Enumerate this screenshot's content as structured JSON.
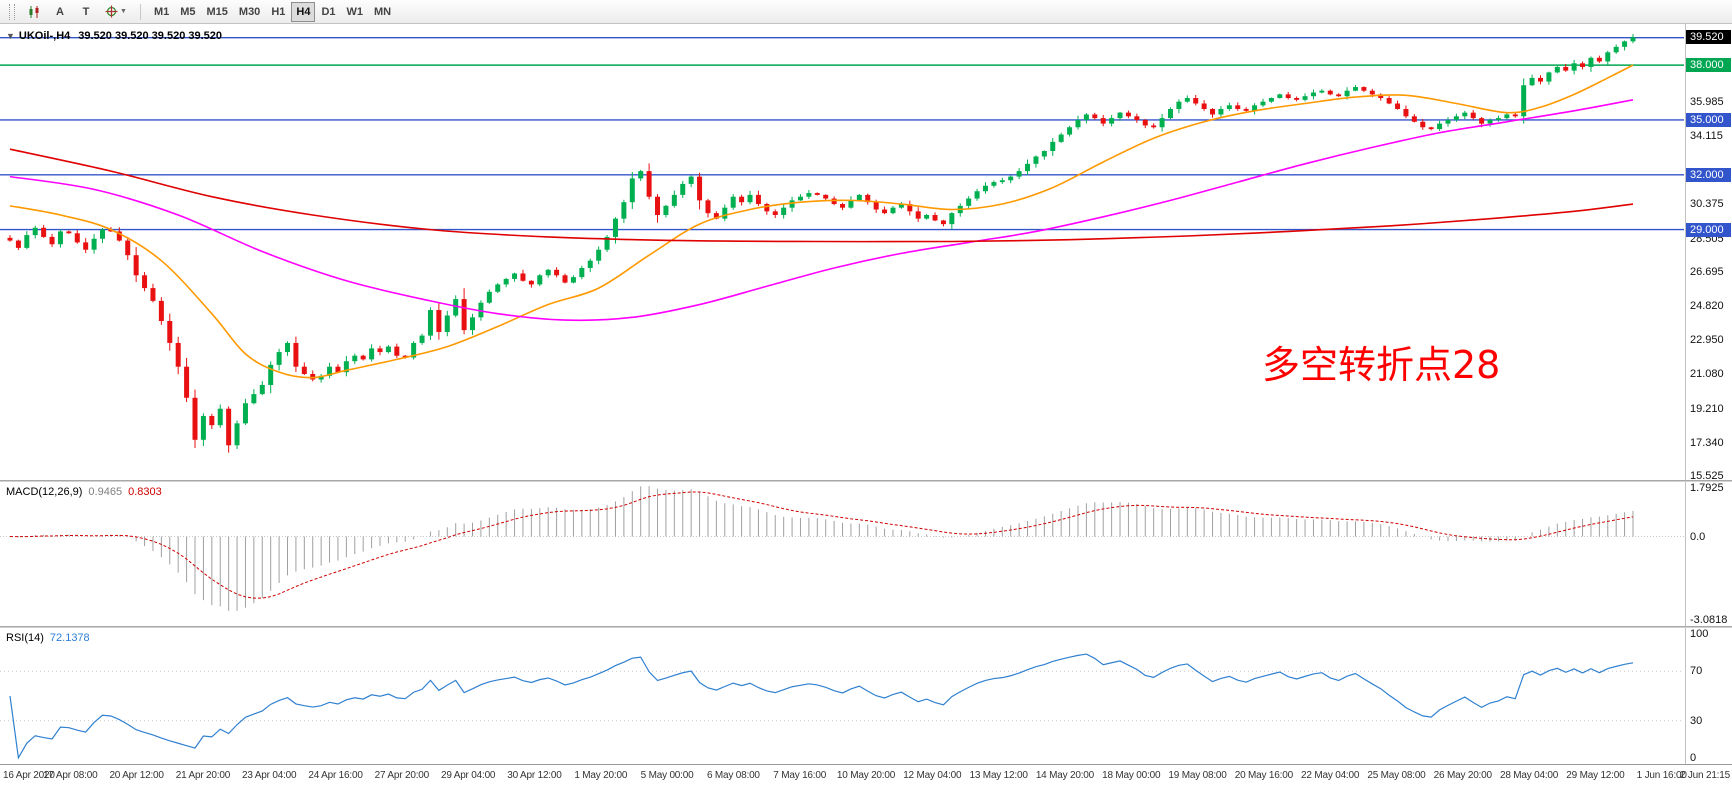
{
  "toolbar": {
    "text_buttons": [
      "A",
      "T"
    ],
    "timeframes": [
      "M1",
      "M5",
      "M15",
      "M30",
      "H1",
      "H4",
      "D1",
      "W1",
      "MN"
    ],
    "active_timeframe": "H4"
  },
  "colors": {
    "up": "#00b050",
    "down": "#e81010",
    "ma_fast": "#ff9900",
    "ma_mid": "#ff00ff",
    "ma_slow": "#e00000",
    "macd_hist": "#a0a0a0",
    "macd_signal": "#d00000",
    "rsi": "#3080d0",
    "hline_blue": "#3355cc",
    "hline_green": "#00a651",
    "bid_tag": "#000000"
  },
  "main_chart": {
    "collapse_icon": "▼",
    "symbol_period": "UKOil-,H4",
    "ohlc": "39.520 39.520 39.520 39.520",
    "annotation": "多空转折点28",
    "price_range": {
      "max": 40.25,
      "min": 15.3
    },
    "price_ticks": [
      "35.985",
      "34.115",
      "30.375",
      "28.505",
      "26.695",
      "24.820",
      "22.950",
      "21.080",
      "19.210",
      "17.340",
      "15.525"
    ],
    "price_tags": [
      {
        "value": 39.52,
        "label": "39.520",
        "bg": "#000000"
      },
      {
        "value": 38.0,
        "label": "38.000",
        "bg": "#00a651"
      },
      {
        "value": 35.0,
        "label": "35.000",
        "bg": "#3355cc"
      },
      {
        "value": 32.0,
        "label": "32.000",
        "bg": "#3355cc"
      },
      {
        "value": 29.0,
        "label": "29.000",
        "bg": "#3355cc"
      }
    ],
    "hlines": [
      {
        "value": 39.5,
        "color": "#3355cc"
      },
      {
        "value": 38.0,
        "color": "#00a651"
      },
      {
        "value": 35.0,
        "color": "#3355cc"
      },
      {
        "value": 32.0,
        "color": "#3355cc"
      },
      {
        "value": 29.0,
        "color": "#3355cc"
      }
    ]
  },
  "macd_panel": {
    "label": "MACD(12,26,9)",
    "value_main": "0.9465",
    "value_signal": "0.8303",
    "ticks": [
      "1.7925",
      "0.0",
      "-3.0818"
    ]
  },
  "rsi_panel": {
    "label": "RSI(14)",
    "value": "72.1378",
    "ticks": [
      "100",
      "70",
      "30",
      "0"
    ]
  },
  "chart_data": {
    "type": "candlestick",
    "symbol": "UKOil-",
    "timeframe": "H4",
    "closes": [
      28.4,
      28.0,
      28.7,
      29.1,
      28.6,
      28.2,
      28.9,
      28.8,
      28.3,
      27.9,
      28.5,
      29.0,
      28.9,
      28.4,
      27.6,
      26.5,
      25.8,
      25.1,
      24.0,
      22.8,
      21.5,
      19.8,
      17.5,
      18.8,
      18.3,
      19.2,
      17.2,
      18.4,
      19.5,
      20.0,
      20.5,
      21.6,
      22.3,
      22.8,
      21.5,
      21.1,
      20.8,
      21.0,
      21.5,
      21.2,
      21.8,
      22.1,
      21.9,
      22.5,
      22.3,
      22.6,
      22.1,
      22.0,
      22.8,
      23.2,
      24.6,
      23.4,
      24.3,
      25.2,
      23.5,
      24.2,
      25.0,
      25.6,
      26.0,
      26.3,
      26.6,
      26.2,
      26.0,
      26.5,
      26.8,
      26.5,
      26.1,
      26.4,
      26.9,
      27.3,
      27.9,
      28.6,
      29.6,
      30.5,
      31.8,
      32.2,
      30.8,
      29.8,
      30.3,
      30.9,
      31.5,
      31.9,
      30.6,
      29.9,
      29.6,
      30.2,
      30.8,
      30.5,
      30.9,
      30.4,
      30.0,
      29.8,
      30.2,
      30.6,
      30.8,
      31.0,
      30.9,
      30.7,
      30.4,
      30.2,
      30.6,
      30.9,
      30.5,
      30.1,
      29.9,
      30.2,
      30.4,
      30.0,
      29.6,
      29.8,
      29.5,
      29.3,
      29.9,
      30.3,
      30.7,
      31.1,
      31.4,
      31.6,
      31.7,
      31.9,
      32.2,
      32.6,
      33.0,
      33.3,
      33.8,
      34.2,
      34.6,
      35.0,
      35.3,
      35.1,
      34.8,
      35.1,
      35.4,
      35.2,
      35.0,
      34.7,
      34.6,
      35.1,
      35.6,
      36.0,
      36.2,
      35.9,
      35.6,
      35.3,
      35.6,
      35.8,
      35.6,
      35.5,
      35.8,
      36.0,
      36.2,
      36.4,
      36.2,
      36.1,
      36.3,
      36.5,
      36.6,
      36.4,
      36.3,
      36.6,
      36.8,
      36.6,
      36.4,
      36.2,
      35.9,
      35.6,
      35.2,
      34.9,
      34.6,
      34.5,
      34.8,
      35.0,
      35.2,
      35.4,
      35.1,
      34.8,
      35.0,
      35.1,
      35.3,
      35.2,
      36.9,
      37.3,
      37.1,
      37.6,
      37.9,
      37.7,
      38.1,
      37.9,
      38.4,
      38.2,
      38.7,
      39.0,
      39.3,
      39.52
    ],
    "moving_averages": [
      {
        "name": "fast",
        "color_key": "ma_fast",
        "points": [
          [
            0,
            30.3
          ],
          [
            6,
            29.8
          ],
          [
            12,
            29.0
          ],
          [
            18,
            27.3
          ],
          [
            24,
            24.4
          ],
          [
            28,
            22.2
          ],
          [
            32,
            21.2
          ],
          [
            36,
            20.9
          ],
          [
            40,
            21.3
          ],
          [
            46,
            21.9
          ],
          [
            52,
            22.6
          ],
          [
            58,
            23.7
          ],
          [
            64,
            24.9
          ],
          [
            70,
            25.8
          ],
          [
            76,
            27.6
          ],
          [
            82,
            29.3
          ],
          [
            88,
            30.1
          ],
          [
            94,
            30.5
          ],
          [
            100,
            30.6
          ],
          [
            106,
            30.4
          ],
          [
            112,
            30.1
          ],
          [
            118,
            30.4
          ],
          [
            124,
            31.3
          ],
          [
            130,
            32.7
          ],
          [
            136,
            34.0
          ],
          [
            142,
            34.9
          ],
          [
            148,
            35.5
          ],
          [
            154,
            35.9
          ],
          [
            160,
            36.25
          ],
          [
            166,
            36.35
          ],
          [
            172,
            35.9
          ],
          [
            178,
            35.4
          ],
          [
            182,
            35.7
          ],
          [
            186,
            36.4
          ],
          [
            190,
            37.3
          ],
          [
            193,
            38.0
          ]
        ]
      },
      {
        "name": "mid",
        "color_key": "ma_mid",
        "points": [
          [
            0,
            31.9
          ],
          [
            10,
            31.2
          ],
          [
            20,
            29.8
          ],
          [
            30,
            27.8
          ],
          [
            40,
            26.2
          ],
          [
            50,
            25.1
          ],
          [
            58,
            24.4
          ],
          [
            66,
            24.05
          ],
          [
            74,
            24.2
          ],
          [
            82,
            24.9
          ],
          [
            90,
            25.9
          ],
          [
            98,
            26.9
          ],
          [
            106,
            27.7
          ],
          [
            114,
            28.3
          ],
          [
            122,
            28.9
          ],
          [
            130,
            29.7
          ],
          [
            138,
            30.6
          ],
          [
            146,
            31.6
          ],
          [
            154,
            32.6
          ],
          [
            162,
            33.5
          ],
          [
            170,
            34.3
          ],
          [
            178,
            34.9
          ],
          [
            186,
            35.5
          ],
          [
            193,
            36.1
          ]
        ]
      },
      {
        "name": "slow",
        "color_key": "ma_slow",
        "points": [
          [
            0,
            33.4
          ],
          [
            12,
            32.2
          ],
          [
            24,
            30.8
          ],
          [
            36,
            29.8
          ],
          [
            50,
            29.0
          ],
          [
            64,
            28.6
          ],
          [
            80,
            28.4
          ],
          [
            96,
            28.35
          ],
          [
            112,
            28.35
          ],
          [
            126,
            28.45
          ],
          [
            140,
            28.65
          ],
          [
            152,
            28.9
          ],
          [
            164,
            29.2
          ],
          [
            176,
            29.6
          ],
          [
            186,
            30.0
          ],
          [
            193,
            30.4
          ]
        ]
      }
    ],
    "macd": {
      "fast": 12,
      "slow": 26,
      "signal": 9,
      "current": "0.9465",
      "current_signal": "0.8303",
      "scale_max": 1.7925,
      "scale_min": -3.0818
    },
    "rsi": {
      "period": 14,
      "current": "72.1378",
      "levels": [
        70,
        30
      ],
      "scale_max": 100,
      "scale_min": 0
    },
    "x_labels": [
      "16 Apr 2020",
      "17 Apr 08:00",
      "20 Apr 12:00",
      "21 Apr 20:00",
      "23 Apr 04:00",
      "24 Apr 16:00",
      "27 Apr 20:00",
      "29 Apr 04:00",
      "30 Apr 12:00",
      "1 May 20:00",
      "5 May 00:00",
      "6 May 08:00",
      "7 May 16:00",
      "10 May 20:00",
      "12 May 04:00",
      "13 May 12:00",
      "14 May 20:00",
      "18 May 00:00",
      "19 May 08:00",
      "20 May 16:00",
      "22 May 04:00",
      "25 May 08:00",
      "26 May 20:00",
      "28 May 04:00",
      "29 May 12:00",
      "1 Jun 16:00",
      "2 Jun 21:15"
    ]
  }
}
